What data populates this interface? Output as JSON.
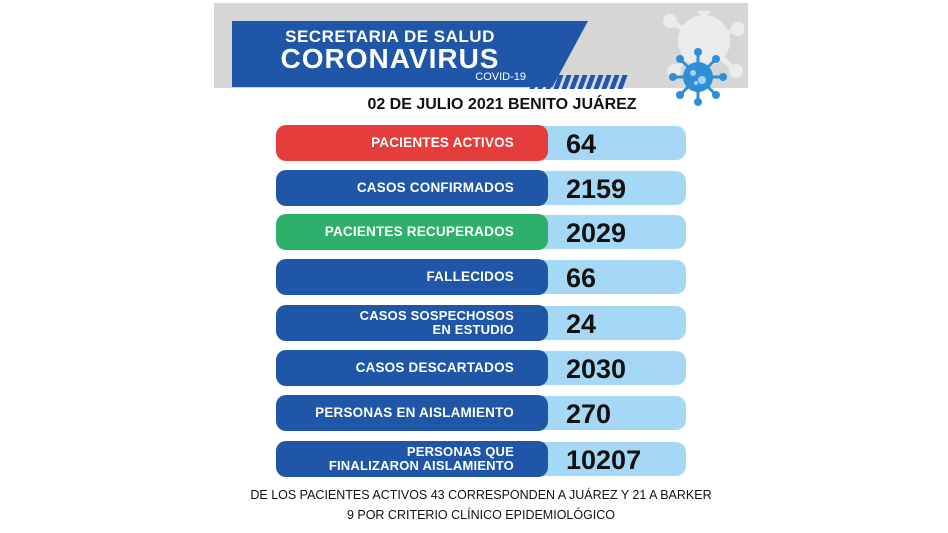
{
  "header": {
    "line1": "SECRETARIA DE SALUD",
    "line2": "CORONAVIRUS",
    "line3": "COVID-19",
    "brand_color": "#1f56a8"
  },
  "date_line": "02 DE JULIO 2021 BENITO JUÁREZ",
  "rows": [
    {
      "label_lines": [
        "PACIENTES ACTIVOS"
      ],
      "value": "64",
      "color": "#e53c3c"
    },
    {
      "label_lines": [
        "CASOS CONFIRMADOS"
      ],
      "value": "2159",
      "color": "#1f56a8"
    },
    {
      "label_lines": [
        "PACIENTES RECUPERADOS"
      ],
      "value": "2029",
      "color": "#2fb06a"
    },
    {
      "label_lines": [
        "FALLECIDOS"
      ],
      "value": "66",
      "color": "#1f56a8"
    },
    {
      "label_lines": [
        "CASOS SOSPECHOSOS",
        "EN ESTUDIO"
      ],
      "value": "24",
      "color": "#1f56a8"
    },
    {
      "label_lines": [
        "CASOS DESCARTADOS"
      ],
      "value": "2030",
      "color": "#1f56a8"
    },
    {
      "label_lines": [
        "PERSONAS EN AISLAMIENTO"
      ],
      "value": "270",
      "color": "#1f56a8"
    },
    {
      "label_lines": [
        "PERSONAS QUE",
        "FINALIZARON AISLAMIENTO"
      ],
      "value": "10207",
      "color": "#1f56a8"
    }
  ],
  "footer": {
    "line1": "DE LOS PACIENTES ACTIVOS 43 CORRESPONDEN A JUÁREZ Y 21 A BARKER",
    "line2": "9 POR CRITERIO CLÍNICO EPIDEMIOLÓGICO"
  },
  "value_bar_color": "#a5d8f4",
  "icons": [
    "virus-icon"
  ]
}
